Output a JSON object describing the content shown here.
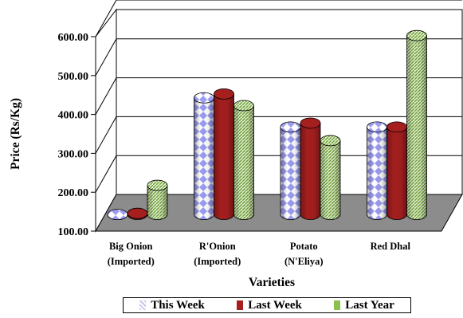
{
  "chart_data": {
    "type": "bar",
    "categories": [
      [
        "Big Onion",
        "(Imported)"
      ],
      [
        "R'Onion",
        "(Imported)"
      ],
      [
        "Potato",
        "(N'Eliya)"
      ],
      [
        "Red Dhal",
        ""
      ]
    ],
    "series": [
      {
        "name": "This Week",
        "values": [
          155,
          455,
          380,
          380
        ],
        "color": "#c6c6f2"
      },
      {
        "name": "Last Week",
        "values": [
          158,
          465,
          390,
          380
        ],
        "color": "#a51f1f"
      },
      {
        "name": "Last Year",
        "values": [
          230,
          435,
          345,
          615
        ],
        "color": "#8cc152"
      }
    ],
    "xlabel": "Varieties",
    "ylabel": "Price (Rs/Kg)",
    "ylim": [
      100,
      600
    ],
    "yticks": [
      "100.00",
      "200.00",
      "300.00",
      "400.00",
      "500.00",
      "600.00"
    ],
    "grid": true,
    "legend_position": "bottom"
  }
}
